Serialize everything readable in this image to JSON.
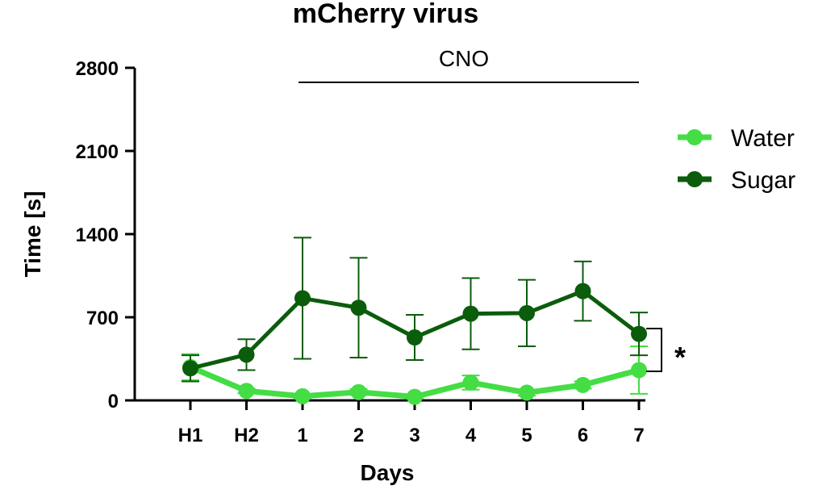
{
  "chart_data": {
    "type": "line",
    "title": "mCherry virus",
    "xlabel": "Days",
    "ylabel": "Time [s]",
    "categories": [
      "H1",
      "H2",
      "1",
      "2",
      "3",
      "4",
      "5",
      "6",
      "7"
    ],
    "ylim": [
      0,
      2800
    ],
    "yticks": [
      0,
      700,
      1400,
      2100,
      2800
    ],
    "legend_position": "right",
    "series": [
      {
        "name": "Water",
        "color": "#44dd44",
        "values": [
          280,
          80,
          35,
          70,
          30,
          150,
          65,
          130,
          255
        ],
        "error": [
          110,
          20,
          15,
          25,
          15,
          60,
          25,
          30,
          200
        ]
      },
      {
        "name": "Sugar",
        "color": "#0b5c0b",
        "values": [
          270,
          385,
          860,
          780,
          530,
          730,
          735,
          920,
          560
        ],
        "error": [
          110,
          130,
          510,
          420,
          190,
          300,
          280,
          250,
          180
        ]
      }
    ],
    "annotations": {
      "bar_label": "CNO",
      "bar_from": "1",
      "bar_to": "7",
      "significance": "*"
    }
  }
}
